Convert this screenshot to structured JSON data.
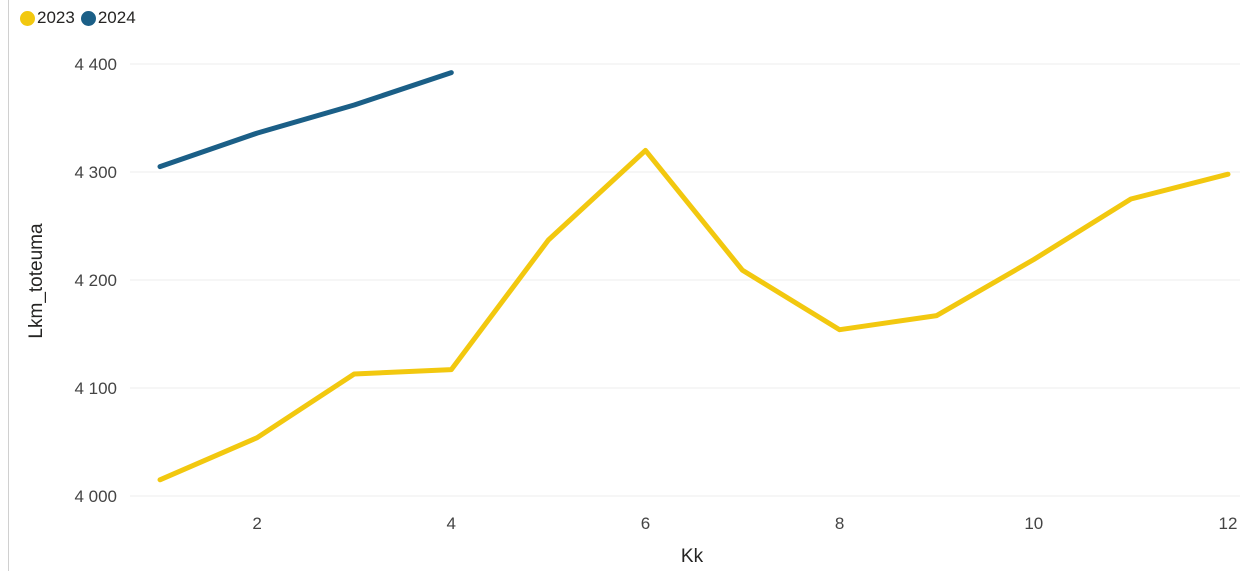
{
  "chart_data": {
    "type": "line",
    "xlabel": "Kk",
    "ylabel": "Lkm_toteuma",
    "xlim": [
      1,
      12
    ],
    "ylim": [
      4000,
      4400
    ],
    "x_ticks": [
      2,
      4,
      6,
      8,
      10,
      12
    ],
    "y_ticks": [
      4000,
      4100,
      4200,
      4300,
      4400
    ],
    "y_tick_labels": [
      "4 000",
      "4 100",
      "4 200",
      "4 300",
      "4 400"
    ],
    "grid": true,
    "legend_position": "top-left",
    "series": [
      {
        "name": "2023",
        "color": "#F2C80F",
        "x": [
          1,
          2,
          3,
          4,
          5,
          6,
          7,
          8,
          9,
          10,
          11,
          12
        ],
        "values": [
          4015,
          4054,
          4113,
          4117,
          4237,
          4320,
          4209,
          4154,
          4167,
          4219,
          4275,
          4298
        ]
      },
      {
        "name": "2024",
        "color": "#1B5F87",
        "x": [
          1,
          2,
          3,
          4
        ],
        "values": [
          4305,
          4336,
          4362,
          4392
        ]
      }
    ]
  }
}
